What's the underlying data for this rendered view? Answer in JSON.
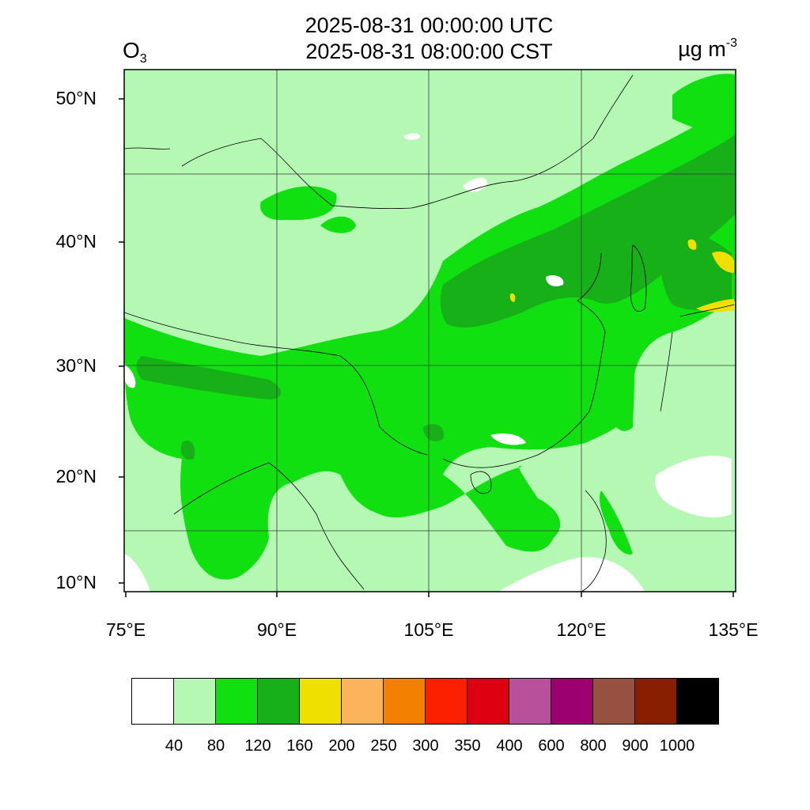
{
  "header": {
    "time_utc": "2025-08-31 00:00:00 UTC",
    "time_cst": "2025-08-31 08:00:00 CST",
    "species_main": "O",
    "species_sub": "3",
    "units_main": "µg m",
    "units_sup": "-3"
  },
  "axes": {
    "lat_labels": [
      "50°N",
      "40°N",
      "30°N",
      "20°N",
      "10°N"
    ],
    "lon_labels": [
      "75°E",
      "90°E",
      "105°E",
      "120°E",
      "135°E"
    ]
  },
  "legend": {
    "colors": [
      "#ffffff",
      "#b4f8b4",
      "#10e010",
      "#18b018",
      "#f0e000",
      "#fcb45c",
      "#f48000",
      "#fc2000",
      "#dc0010",
      "#b8509c",
      "#9c0070",
      "#985040",
      "#882000",
      "#000000"
    ],
    "labels": [
      "40",
      "80",
      "120",
      "160",
      "200",
      "250",
      "300",
      "350",
      "400",
      "600",
      "800",
      "900",
      "1000"
    ]
  },
  "map_colors": {
    "background": "#b4f8b4",
    "white": "#ffffff",
    "green": "#10e010",
    "dark_green": "#18b018",
    "yellow": "#f0e000"
  }
}
